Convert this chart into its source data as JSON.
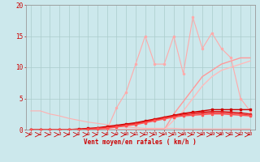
{
  "xlabel": "Vent moyen/en rafales ( km/h )",
  "bg_color": "#cce8ec",
  "grid_color": "#aacccc",
  "x": [
    0,
    1,
    2,
    3,
    4,
    5,
    6,
    7,
    8,
    9,
    10,
    11,
    12,
    13,
    14,
    15,
    16,
    17,
    18,
    19,
    20,
    21,
    22,
    23
  ],
  "line_flat_high": [
    3.0,
    3.0,
    2.5,
    2.2,
    1.8,
    1.5,
    1.2,
    1.0,
    0.8,
    0.5,
    0.4,
    0.3,
    0.2,
    0.2,
    0.2,
    0.2,
    0.1,
    0.1,
    0.1,
    0.1,
    0.1,
    0.1,
    0.1,
    0.1
  ],
  "line_flat_high_color": "#ffb0b0",
  "line_jagged": [
    0,
    0,
    0,
    0,
    0,
    0,
    0,
    0,
    0,
    3.5,
    6.0,
    10.5,
    15.0,
    10.5,
    10.5,
    15.0,
    9.0,
    18.0,
    13.0,
    15.5,
    13.0,
    11.5,
    5.0,
    3.0
  ],
  "line_jagged_color": "#ffaaaa",
  "line_rise1": [
    0,
    0,
    0,
    0,
    0,
    0,
    0,
    0,
    0,
    0,
    0,
    0,
    0,
    0,
    0,
    2.5,
    4.5,
    6.5,
    8.5,
    9.5,
    10.5,
    11.0,
    11.5,
    11.5
  ],
  "line_rise1_color": "#ff9999",
  "line_rise2": [
    0,
    0,
    0,
    0,
    0,
    0,
    0,
    0,
    0,
    0,
    0,
    0,
    0,
    0,
    0,
    1.5,
    3.0,
    5.0,
    7.0,
    8.5,
    9.5,
    10.0,
    10.5,
    11.0
  ],
  "line_rise2_color": "#ffbbbb",
  "line_red1": [
    0,
    0,
    0,
    0,
    0,
    0.1,
    0.2,
    0.3,
    0.5,
    0.7,
    0.9,
    1.1,
    1.4,
    1.7,
    2.0,
    2.3,
    2.6,
    2.8,
    3.0,
    3.2,
    3.2,
    3.2,
    3.2,
    3.2
  ],
  "line_red1_color": "#cc0000",
  "line_red2": [
    0,
    0,
    0,
    0,
    0,
    0.0,
    0.1,
    0.2,
    0.4,
    0.6,
    0.8,
    1.0,
    1.3,
    1.6,
    1.9,
    2.2,
    2.5,
    2.7,
    2.8,
    2.9,
    2.9,
    2.8,
    2.7,
    2.5
  ],
  "line_red2_color": "#dd1111",
  "line_red3": [
    0,
    0,
    0,
    0,
    0,
    0,
    0.1,
    0.2,
    0.3,
    0.5,
    0.7,
    0.9,
    1.2,
    1.5,
    1.8,
    2.1,
    2.3,
    2.5,
    2.6,
    2.7,
    2.7,
    2.6,
    2.5,
    2.3
  ],
  "line_red3_color": "#ee3333",
  "line_red4": [
    0,
    0,
    0,
    0,
    0,
    0,
    0,
    0.1,
    0.2,
    0.4,
    0.6,
    0.8,
    1.1,
    1.4,
    1.7,
    2.0,
    2.2,
    2.3,
    2.4,
    2.5,
    2.5,
    2.4,
    2.3,
    2.2
  ],
  "line_red4_color": "#ff5555",
  "line_zero": [
    0,
    0,
    0,
    0,
    0,
    0,
    0,
    0,
    0,
    0,
    0,
    0,
    0,
    0,
    0,
    0,
    0,
    0,
    0,
    0,
    0,
    0,
    0,
    0
  ],
  "line_zero_color": "#ff0000",
  "ylim": [
    0,
    20
  ],
  "xlim": [
    0,
    23
  ],
  "yticks": [
    0,
    5,
    10,
    15,
    20
  ],
  "xticks": [
    0,
    1,
    2,
    3,
    4,
    5,
    6,
    7,
    8,
    9,
    10,
    11,
    12,
    13,
    14,
    15,
    16,
    17,
    18,
    19,
    20,
    21,
    22,
    23
  ]
}
